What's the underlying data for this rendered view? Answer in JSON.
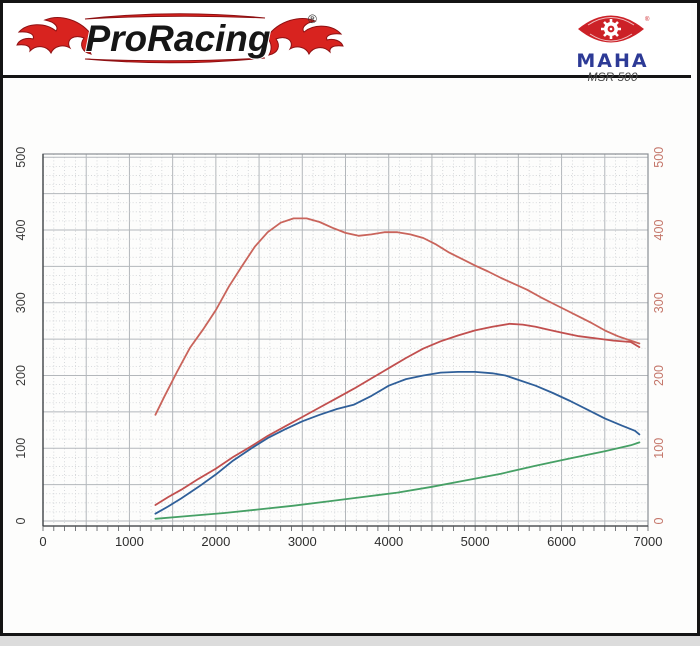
{
  "header": {
    "brand": "ProRacing",
    "brand_mark": "®",
    "device": {
      "name": "MAHA",
      "model": "MSR 500",
      "mark": "®"
    }
  },
  "colors": {
    "torque_red": "#c9645b",
    "power_red": "#c14f4e",
    "power_blue": "#2f5f99",
    "loss_green": "#46a065",
    "right_axis_labels": "#c4766a",
    "left_axis_labels": "#3a3a3a",
    "grid_major": "#b3b7bb",
    "grid_minor": "#cdd0d3",
    "frame": "#8a8f94"
  },
  "chart_data": {
    "type": "line",
    "title": "",
    "xlabel": "",
    "ylabel": "",
    "grid": true,
    "legend": false,
    "x_axis": {
      "range": [
        0,
        7000
      ],
      "ticks": [
        0,
        1000,
        2000,
        3000,
        4000,
        5000,
        6000,
        7000
      ],
      "minor_step": 125,
      "major_step": 500
    },
    "y_axis_left": {
      "range": [
        0,
        505
      ],
      "ticks": [
        0,
        100,
        200,
        300,
        400,
        500
      ],
      "minor_step": 12.5,
      "major_step": 50
    },
    "y_axis_right": {
      "range": [
        0,
        505
      ],
      "ticks": [
        0,
        100,
        200,
        300,
        400,
        500
      ]
    },
    "series": [
      {
        "name": "torque-curve-red",
        "color": "#c9645b",
        "points": [
          [
            1300,
            146
          ],
          [
            1400,
            170
          ],
          [
            1550,
            205
          ],
          [
            1700,
            238
          ],
          [
            1850,
            263
          ],
          [
            2000,
            290
          ],
          [
            2150,
            322
          ],
          [
            2300,
            350
          ],
          [
            2450,
            377
          ],
          [
            2600,
            397
          ],
          [
            2750,
            410
          ],
          [
            2900,
            416
          ],
          [
            3050,
            416
          ],
          [
            3200,
            411
          ],
          [
            3350,
            403
          ],
          [
            3500,
            396
          ],
          [
            3650,
            392
          ],
          [
            3800,
            394
          ],
          [
            3950,
            397
          ],
          [
            4100,
            397
          ],
          [
            4250,
            394
          ],
          [
            4400,
            389
          ],
          [
            4550,
            380
          ],
          [
            4700,
            369
          ],
          [
            4850,
            360
          ],
          [
            5000,
            351
          ],
          [
            5150,
            343
          ],
          [
            5300,
            334
          ],
          [
            5450,
            326
          ],
          [
            5600,
            318
          ],
          [
            5750,
            308
          ],
          [
            5900,
            299
          ],
          [
            6050,
            290
          ],
          [
            6200,
            281
          ],
          [
            6350,
            272
          ],
          [
            6500,
            262
          ],
          [
            6650,
            254
          ],
          [
            6800,
            248
          ],
          [
            6900,
            244
          ]
        ]
      },
      {
        "name": "power-curve-red",
        "color": "#c14f4e",
        "points": [
          [
            1300,
            22
          ],
          [
            1450,
            33
          ],
          [
            1600,
            43
          ],
          [
            1800,
            58
          ],
          [
            2000,
            72
          ],
          [
            2200,
            88
          ],
          [
            2400,
            102
          ],
          [
            2600,
            117
          ],
          [
            2800,
            130
          ],
          [
            3000,
            143
          ],
          [
            3200,
            156
          ],
          [
            3400,
            169
          ],
          [
            3600,
            182
          ],
          [
            3800,
            196
          ],
          [
            4000,
            210
          ],
          [
            4200,
            224
          ],
          [
            4400,
            237
          ],
          [
            4600,
            247
          ],
          [
            4800,
            255
          ],
          [
            5000,
            262
          ],
          [
            5200,
            267
          ],
          [
            5400,
            271
          ],
          [
            5550,
            270
          ],
          [
            5700,
            267
          ],
          [
            5850,
            263
          ],
          [
            6000,
            259
          ],
          [
            6200,
            254
          ],
          [
            6400,
            251
          ],
          [
            6600,
            248
          ],
          [
            6800,
            246
          ],
          [
            6900,
            239
          ]
        ]
      },
      {
        "name": "power-curve-blue",
        "color": "#2f5f99",
        "points": [
          [
            1300,
            10
          ],
          [
            1450,
            20
          ],
          [
            1600,
            31
          ],
          [
            1800,
            47
          ],
          [
            2000,
            64
          ],
          [
            2200,
            83
          ],
          [
            2400,
            99
          ],
          [
            2600,
            114
          ],
          [
            2800,
            126
          ],
          [
            3000,
            137
          ],
          [
            3200,
            146
          ],
          [
            3400,
            154
          ],
          [
            3600,
            160
          ],
          [
            3800,
            172
          ],
          [
            4000,
            186
          ],
          [
            4200,
            195
          ],
          [
            4400,
            200
          ],
          [
            4600,
            204
          ],
          [
            4800,
            205
          ],
          [
            5000,
            205
          ],
          [
            5200,
            203
          ],
          [
            5350,
            200
          ],
          [
            5500,
            194
          ],
          [
            5700,
            186
          ],
          [
            5900,
            176
          ],
          [
            6100,
            165
          ],
          [
            6300,
            153
          ],
          [
            6500,
            141
          ],
          [
            6700,
            131
          ],
          [
            6850,
            124
          ],
          [
            6900,
            119
          ]
        ]
      },
      {
        "name": "loss-curve-green",
        "color": "#46a065",
        "points": [
          [
            1300,
            3
          ],
          [
            1700,
            7
          ],
          [
            2100,
            11
          ],
          [
            2500,
            16
          ],
          [
            2900,
            21
          ],
          [
            3300,
            27
          ],
          [
            3700,
            33
          ],
          [
            4100,
            39
          ],
          [
            4500,
            47
          ],
          [
            4900,
            56
          ],
          [
            5300,
            65
          ],
          [
            5700,
            76
          ],
          [
            6100,
            86
          ],
          [
            6500,
            96
          ],
          [
            6800,
            104
          ],
          [
            6900,
            108
          ]
        ]
      }
    ]
  }
}
